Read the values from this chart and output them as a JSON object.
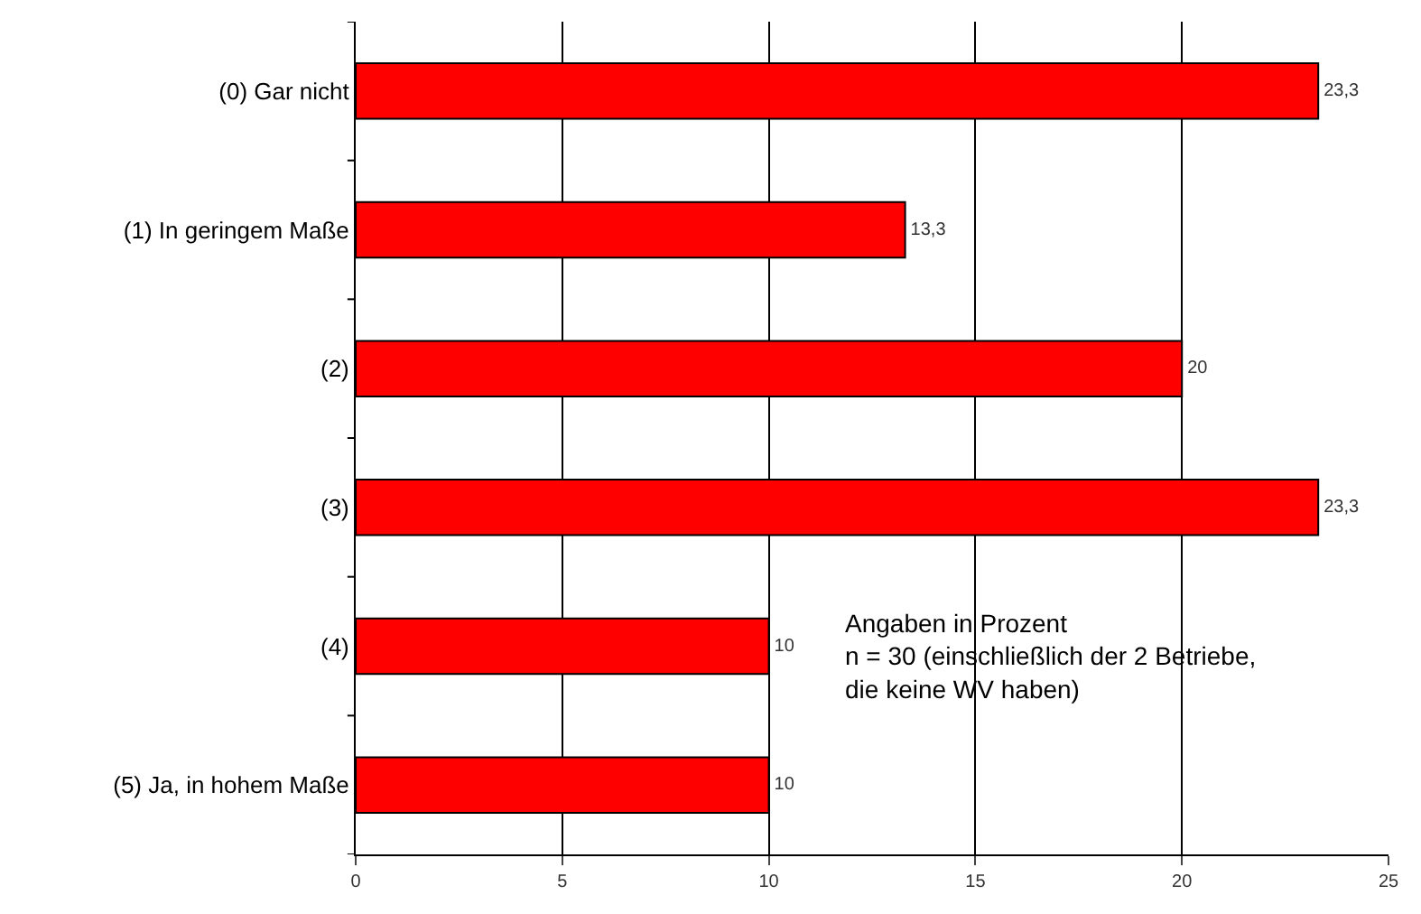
{
  "chart_data": {
    "type": "bar",
    "orientation": "horizontal",
    "categories": [
      "(0) Gar nicht",
      "(1) In geringem Maße",
      "(2)",
      "(3)",
      "(4)",
      "(5) Ja, in hohem Maße"
    ],
    "values": [
      23.3,
      13.3,
      20,
      23.3,
      10,
      10
    ],
    "value_labels": [
      "23,3",
      "13,3",
      "20",
      "23,3",
      "10",
      "10"
    ],
    "color": "#ff0000",
    "xlim": [
      0,
      25
    ],
    "xticks": [
      0,
      5,
      10,
      15,
      20,
      25
    ],
    "grid": "x",
    "annotations": [
      "Angaben in Prozent\nn = 30 (einschließlich der 2 Betriebe,\ndie keine WV haben)"
    ]
  }
}
